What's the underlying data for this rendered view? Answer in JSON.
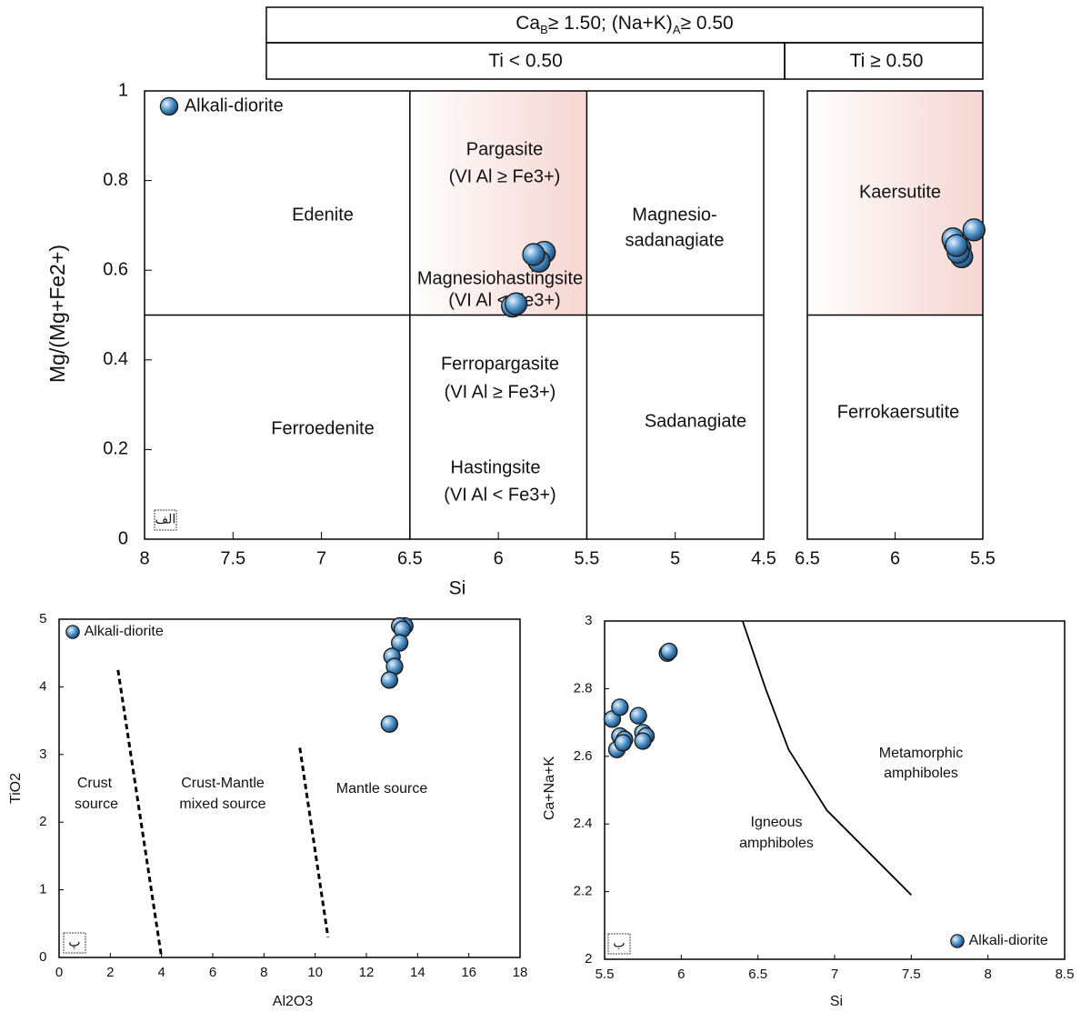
{
  "chart_data": [
    {
      "type": "scatter",
      "super_header": [
        {
          "text": "Ca"
        },
        {
          "text": "B",
          "subscript": true
        },
        {
          "text": "≥ 1.50; (Na+K)"
        },
        {
          "text": "A",
          "subscript": true
        },
        {
          "text": "≥ 0.50"
        }
      ],
      "header": "Ti < 0.50",
      "xlabel": "Si",
      "ylabel": "Mg/(Mg+Fe2+)",
      "xlim": [
        8,
        4.5
      ],
      "xticks": [
        8,
        7.5,
        7,
        6.5,
        6,
        5.5,
        5,
        4.5
      ],
      "ylim": [
        0,
        1
      ],
      "yticks": [
        0,
        0.2,
        0.4,
        0.6,
        0.8,
        1
      ],
      "boundaries": {
        "x": [
          6.5,
          5.5
        ],
        "y": 0.5
      },
      "shaded": {
        "xlim": [
          6.5,
          5.5
        ],
        "ylim": [
          0.5,
          1
        ],
        "color": "#f5d6d2"
      },
      "region_labels": [
        [
          "Edenite"
        ],
        [
          "Pargasite",
          "(VI Al ≥ Fe3+)"
        ],
        [
          "Magnesio-",
          "sadanagiate"
        ],
        [
          "Magnesiohastingsite",
          "(VI Al < Fe3+)"
        ],
        [
          "Ferropargasite",
          "(VI Al ≥ Fe3+)"
        ],
        [
          "Ferroedenite"
        ],
        [
          "Hastingsite",
          "(VI Al < Fe3+)"
        ],
        [
          "Sadanagiate"
        ]
      ],
      "series": [
        {
          "name": "Alkali-diorite",
          "color": "#4a90c8",
          "x": [
            5.78,
            5.74,
            5.77,
            5.8,
            5.92,
            5.9
          ],
          "values": [
            0.63,
            0.64,
            0.62,
            0.635,
            0.52,
            0.525
          ]
        }
      ],
      "legend": "upper left",
      "panel_label": "الف"
    },
    {
      "type": "scatter",
      "header": "Ti ≥ 0.50",
      "xlim": [
        6.5,
        5.5
      ],
      "xticks": [
        6.5,
        6,
        5.5
      ],
      "ylim": [
        0,
        1
      ],
      "boundaries": {
        "y": 0.5
      },
      "shaded": {
        "xlim": [
          6.5,
          5.5
        ],
        "ylim": [
          0.5,
          1
        ],
        "color": "#f5d6d2"
      },
      "region_labels": [
        [
          "Kaersutite"
        ],
        [
          "Ferrokaersutite"
        ]
      ],
      "series": [
        {
          "color": "#4a90c8",
          "x": [
            5.55,
            5.66,
            5.63,
            5.62,
            5.67,
            5.64,
            5.65
          ],
          "values": [
            0.69,
            0.66,
            0.65,
            0.63,
            0.67,
            0.64,
            0.655
          ]
        }
      ]
    },
    {
      "type": "scatter",
      "xlabel": "Al2O3",
      "ylabel": "TiO2",
      "xlim": [
        0,
        18
      ],
      "xticks": [
        0,
        2,
        4,
        6,
        8,
        10,
        12,
        14,
        16,
        18
      ],
      "ylim": [
        0,
        5
      ],
      "yticks": [
        0,
        1,
        2,
        3,
        4,
        5
      ],
      "lines": [
        {
          "style": "dashed",
          "x": [
            2.3,
            4
          ],
          "y": [
            4.25,
            0
          ]
        },
        {
          "style": "dashed",
          "x": [
            9.4,
            10.5
          ],
          "y": [
            3.1,
            0.3
          ]
        }
      ],
      "region_labels": [
        [
          "Crust",
          "source"
        ],
        [
          "Crust-Mantle",
          "mixed source"
        ],
        [
          "Mantle source"
        ]
      ],
      "series": [
        {
          "name": "Alkali-diorite",
          "color": "#4a90c8",
          "x": [
            13.5,
            13.3,
            13.4,
            13.3,
            13.0,
            13.1,
            12.9,
            12.9
          ],
          "values": [
            4.9,
            4.9,
            4.85,
            4.65,
            4.45,
            4.3,
            4.1,
            3.45
          ]
        }
      ],
      "legend": "upper left",
      "panel_label": "پ"
    },
    {
      "type": "scatter",
      "xlabel": "Si",
      "ylabel": "Ca+Na+K",
      "xlim": [
        5.5,
        8.5
      ],
      "xticks": [
        5.5,
        6,
        6.5,
        7,
        7.5,
        8,
        8.5
      ],
      "ylim": [
        2,
        3
      ],
      "yticks": [
        2,
        2.2,
        2.4,
        2.6,
        2.8,
        3
      ],
      "lines": [
        {
          "style": "solid",
          "x": [
            6.4,
            6.55,
            6.7,
            6.95,
            7.5
          ],
          "y": [
            3,
            2.8,
            2.62,
            2.44,
            2.19
          ]
        }
      ],
      "region_labels": [
        [
          "Metamorphic",
          "amphiboles"
        ],
        [
          "Igneous",
          "amphiboles"
        ]
      ],
      "series": [
        {
          "name": "Alkali-diorite",
          "color": "#4a90c8",
          "x": [
            5.55,
            5.6,
            5.58,
            5.6,
            5.63,
            5.62,
            5.72,
            5.75,
            5.77,
            5.75,
            5.91,
            5.92
          ],
          "values": [
            2.71,
            2.745,
            2.62,
            2.66,
            2.65,
            2.64,
            2.72,
            2.67,
            2.66,
            2.645,
            2.905,
            2.91
          ]
        }
      ],
      "legend": "lower right",
      "panel_label": "ب"
    }
  ]
}
